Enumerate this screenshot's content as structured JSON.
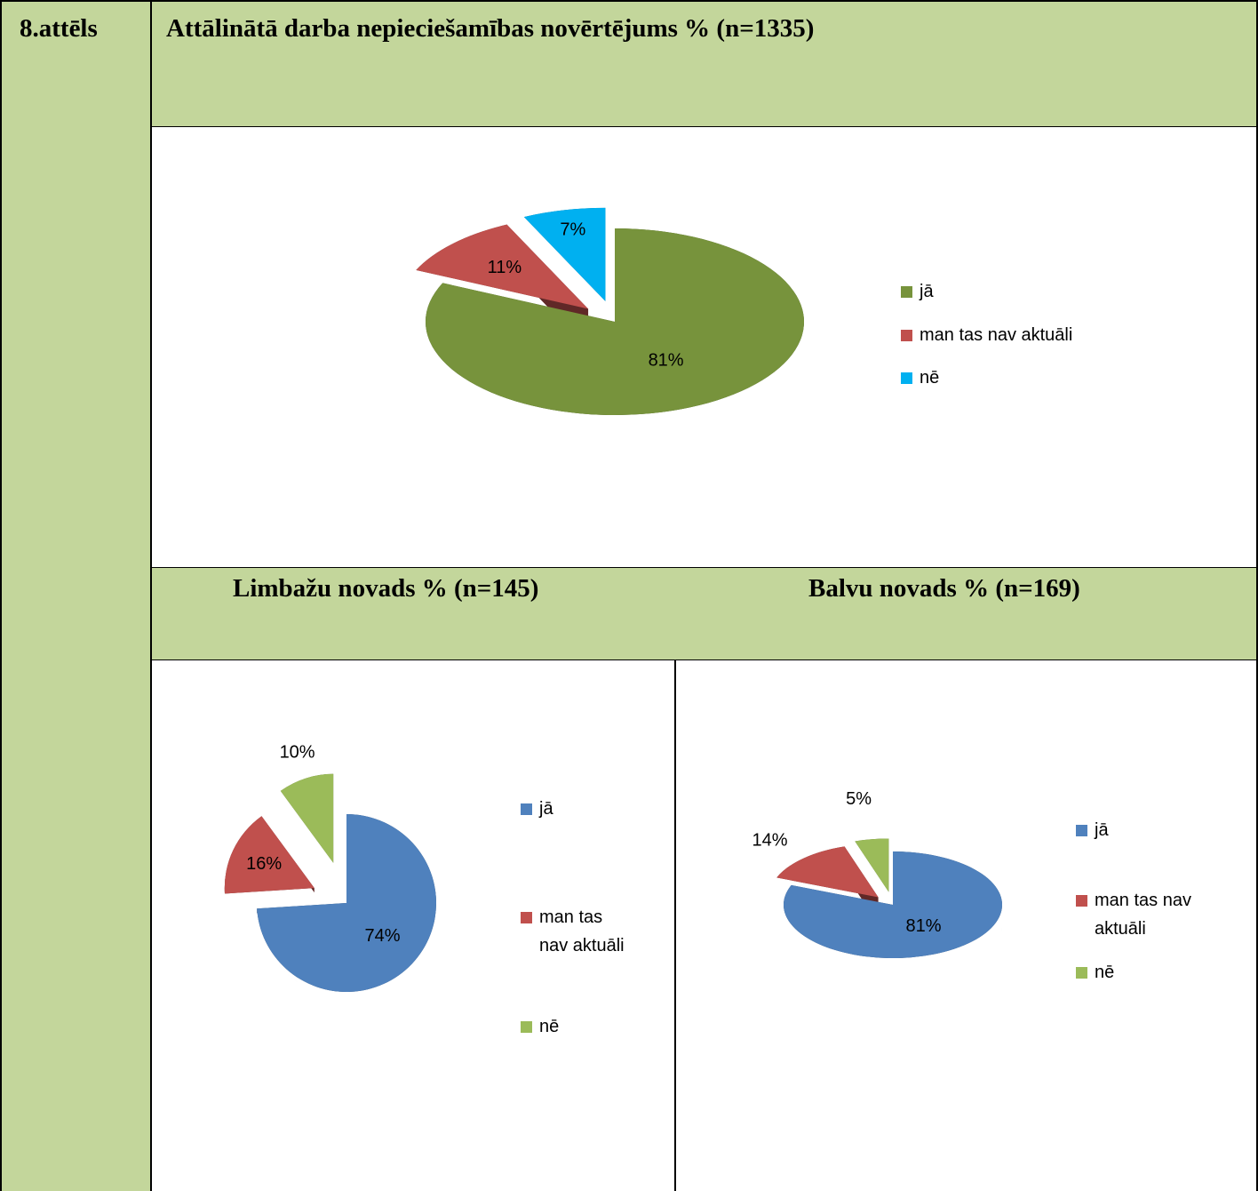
{
  "figure_label": "8.attēls",
  "chart_data": [
    {
      "type": "pie",
      "title": "Attālinātā darba nepieciešamības novērtējums % (n=1335)",
      "categories": [
        "jā",
        "man tas nav aktuāli",
        "nē"
      ],
      "values": [
        81,
        11,
        7
      ],
      "value_labels": [
        "81%",
        "11%",
        "7%"
      ],
      "colors": [
        "#77933c",
        "#c0504d",
        "#00b0f0"
      ]
    },
    {
      "type": "pie",
      "title": "Limbažu novads % (n=145)",
      "categories": [
        "jā",
        "man tas nav aktuāli",
        "nē"
      ],
      "values": [
        74,
        16,
        10
      ],
      "value_labels": [
        "74%",
        "16%",
        "10%"
      ],
      "colors": [
        "#4f81bd",
        "#c0504d",
        "#9bbb59"
      ]
    },
    {
      "type": "pie",
      "title": "Balvu novads % (n=169)",
      "categories": [
        "jā",
        "man tas nav aktuāli",
        "nē"
      ],
      "values": [
        81,
        14,
        5
      ],
      "value_labels": [
        "81%",
        "14%",
        "5%"
      ],
      "colors": [
        "#4f81bd",
        "#c0504d",
        "#9bbb59"
      ]
    }
  ]
}
